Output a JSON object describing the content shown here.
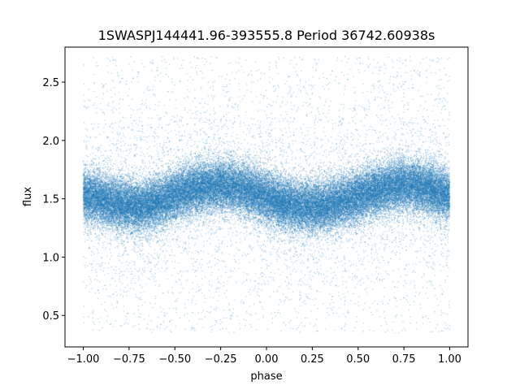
{
  "chart_data": {
    "type": "scatter",
    "title": "1SWASPJ144441.96-393555.8 Period 36742.60938s",
    "xlabel": "phase",
    "ylabel": "flux",
    "xlim": [
      -1.1,
      1.1
    ],
    "ylim": [
      0.23,
      2.8
    ],
    "xticks": [
      -1.0,
      -0.75,
      -0.5,
      -0.25,
      0.0,
      0.25,
      0.5,
      0.75,
      1.0
    ],
    "xtick_labels": [
      "−1.00",
      "−0.75",
      "−0.50",
      "−0.25",
      "0.00",
      "0.25",
      "0.50",
      "0.75",
      "1.00"
    ],
    "yticks": [
      0.5,
      1.0,
      1.5,
      2.0,
      2.5
    ],
    "ytick_labels": [
      "0.5",
      "1.0",
      "1.5",
      "2.0",
      "2.5"
    ],
    "grid": false,
    "marker_color": "#1f77b4",
    "series": [
      {
        "x": [
          -1.0,
          -0.9,
          -0.8,
          -0.7,
          -0.6,
          -0.5,
          -0.4,
          -0.3,
          -0.2,
          -0.1,
          0.0,
          0.1,
          0.2,
          0.3,
          0.4,
          0.5,
          0.6,
          0.7,
          0.8,
          0.9,
          1.0
        ],
        "y": [
          1.53,
          1.49,
          1.45,
          1.43,
          1.47,
          1.53,
          1.58,
          1.61,
          1.61,
          1.57,
          1.51,
          1.46,
          1.43,
          1.43,
          1.47,
          1.52,
          1.57,
          1.61,
          1.62,
          1.58,
          1.53
        ],
        "y_core_range": [
          1.2,
          1.85
        ],
        "y_full_range": [
          0.35,
          2.72
        ],
        "point_count": 60000
      }
    ]
  }
}
